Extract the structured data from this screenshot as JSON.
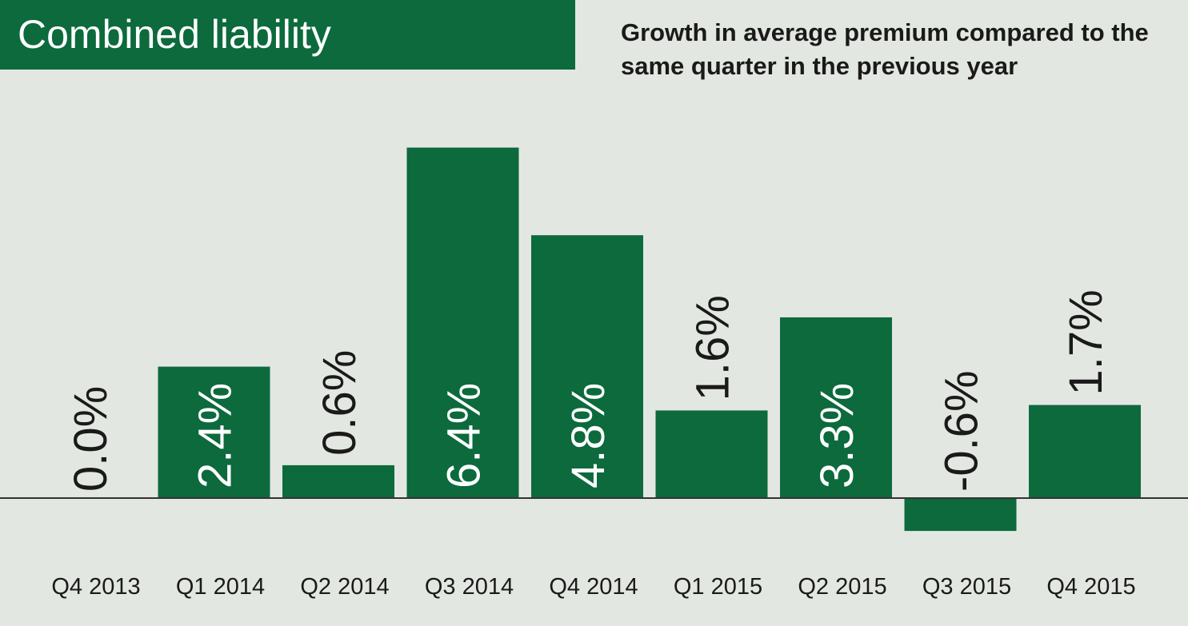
{
  "chart_data": {
    "type": "bar",
    "title": "Combined liability",
    "subtitle": "Growth in average premium compared to the same quarter in the previous year",
    "categories": [
      "Q4 2013",
      "Q1 2014",
      "Q2 2014",
      "Q3 2014",
      "Q4 2014",
      "Q1 2015",
      "Q2 2015",
      "Q3 2015",
      "Q4 2015"
    ],
    "values": [
      0.0,
      2.4,
      0.6,
      6.4,
      4.8,
      1.6,
      3.3,
      -0.6,
      1.7
    ],
    "labels": [
      "0.0%",
      "2.4%",
      "0.6%",
      "6.4%",
      "4.8%",
      "1.6%",
      "3.3%",
      "-0.6%",
      "1.7%"
    ],
    "xlabel": "",
    "ylabel": "",
    "ylim": [
      -0.6,
      6.4
    ],
    "grid": false
  },
  "colors": {
    "bar": "#0c6a3d",
    "background": "#e3e7e1",
    "axis": "#333333",
    "label_dark": "#1a1a1a",
    "label_light": "#ffffff"
  }
}
